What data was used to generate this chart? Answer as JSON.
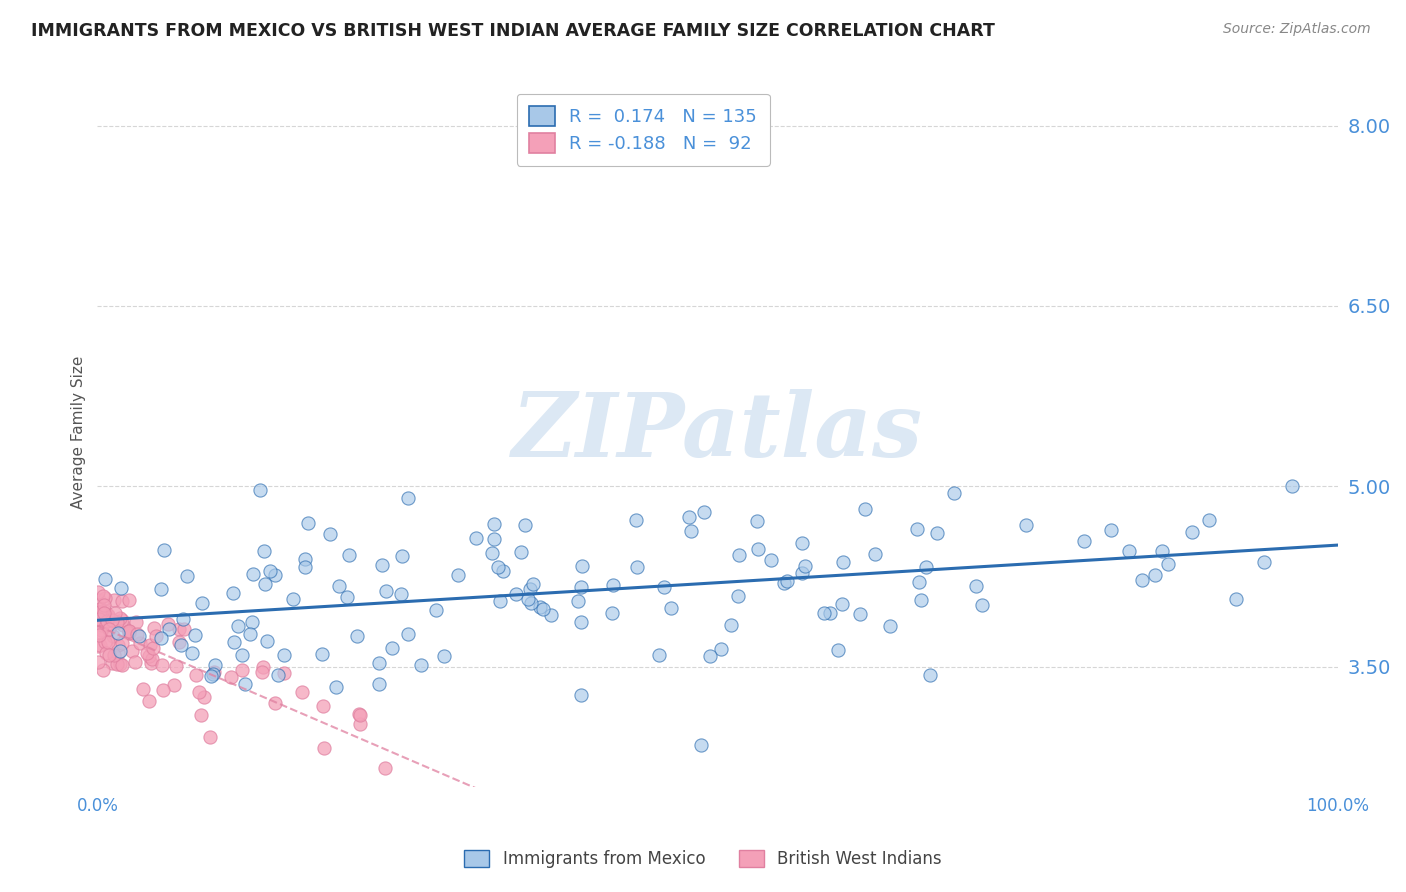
{
  "title": "IMMIGRANTS FROM MEXICO VS BRITISH WEST INDIAN AVERAGE FAMILY SIZE CORRELATION CHART",
  "source": "Source: ZipAtlas.com",
  "ylabel": "Average Family Size",
  "xlim": [
    0,
    1
  ],
  "ylim": [
    2.5,
    8.4
  ],
  "yticks": [
    3.5,
    5.0,
    6.5,
    8.0
  ],
  "xtick_labels": [
    "0.0%",
    "100.0%"
  ],
  "legend1_label": "Immigrants from Mexico",
  "legend2_label": "British West Indians",
  "r1": 0.174,
  "n1": 135,
  "r2": -0.188,
  "n2": 92,
  "blue_dot_color": "#a8c8e8",
  "blue_line_color": "#2b6cb0",
  "pink_dot_color": "#f4a0b8",
  "pink_line_color": "#e080a0",
  "title_color": "#222222",
  "axis_tick_color": "#4a90d9",
  "watermark_color": "#dce8f4",
  "background_color": "#ffffff",
  "grid_color": "#cccccc"
}
